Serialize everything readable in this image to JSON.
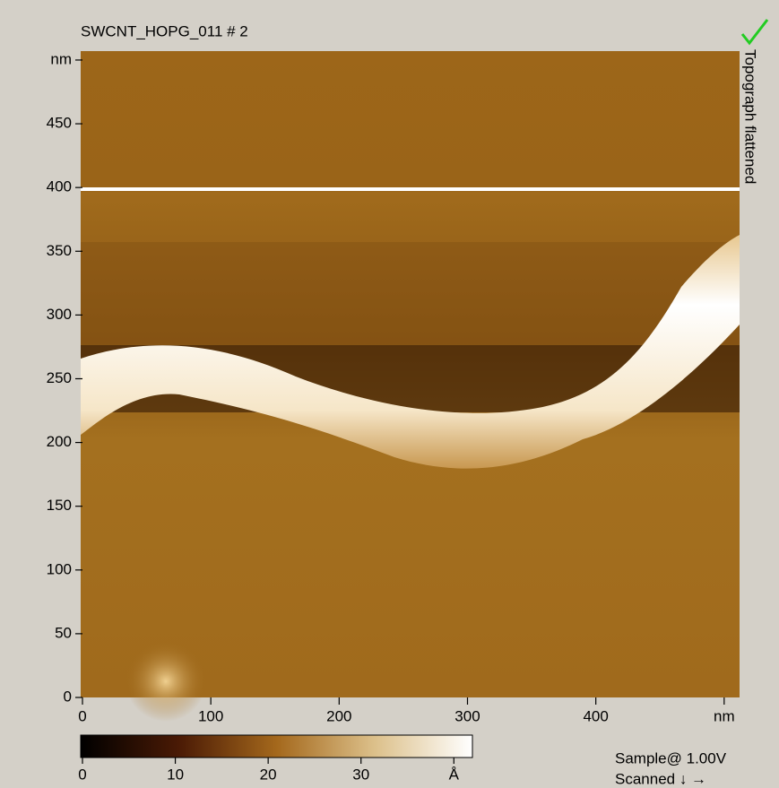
{
  "chart_data": {
    "type": "image",
    "title": "SWCNT_HOPG_011 # 2",
    "side_label": "Topograph flattened",
    "xlim": [
      0,
      512
    ],
    "ylim": [
      0,
      507
    ],
    "xticks": [
      0,
      100,
      200,
      300,
      400,
      {
        "value": 500,
        "label": "nm"
      }
    ],
    "yticks": [
      0,
      50,
      100,
      150,
      200,
      250,
      300,
      350,
      400,
      450,
      {
        "value": 500,
        "label": "nm"
      }
    ],
    "colorbar": {
      "clim": [
        0,
        42
      ],
      "ticks": [
        0,
        10,
        20,
        30,
        {
          "value": 40,
          "label": "Å"
        }
      ]
    },
    "info": [
      "Sample@ 1.00V",
      "Scanned ↓ →"
    ]
  }
}
